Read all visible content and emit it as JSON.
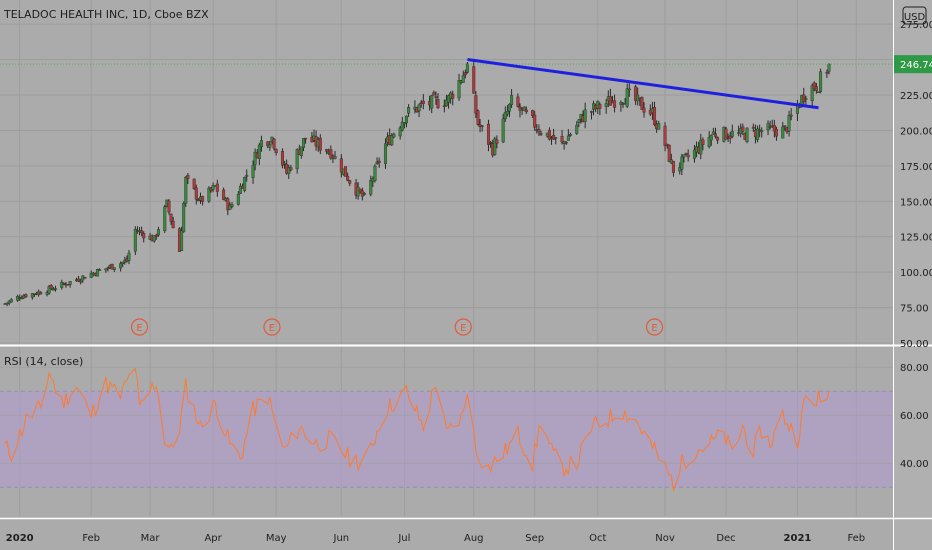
{
  "header": {
    "title": "TELADOC HEALTH INC, 1D, Cboe BZX",
    "currency": "USD"
  },
  "chart_data": [
    {
      "type": "candlestick",
      "symbol": "TELADOC HEALTH INC",
      "interval": "1D",
      "exchange": "Cboe BZX",
      "ylim": [
        50,
        292
      ],
      "y_ticks": [
        "275.00",
        "250.00",
        "225.00",
        "200.00",
        "175.00",
        "150.00",
        "125.00",
        "100.00",
        "75.00",
        "50.00"
      ],
      "last_price_label": "246.74",
      "last_price": 246.74,
      "colors": {
        "up": "#3a8a3e",
        "down": "#b03a3a",
        "trendline": "#1f1fe0",
        "price_line": "#4caf50",
        "price_badge": "#2e9a46"
      },
      "anchors": [
        [
          "2019-12-23",
          77
        ],
        [
          "2019-12-31",
          83
        ],
        [
          "2020-01-10",
          86
        ],
        [
          "2020-01-22",
          92
        ],
        [
          "2020-02-05",
          100
        ],
        [
          "2020-02-20",
          108
        ],
        [
          "2020-02-24",
          130
        ],
        [
          "2020-03-04",
          123
        ],
        [
          "2020-03-10",
          148
        ],
        [
          "2020-03-16",
          115
        ],
        [
          "2020-03-19",
          165
        ],
        [
          "2020-03-26",
          150
        ],
        [
          "2020-04-02",
          160
        ],
        [
          "2020-04-09",
          145
        ],
        [
          "2020-04-20",
          178
        ],
        [
          "2020-04-24",
          192
        ],
        [
          "2020-04-29",
          195
        ],
        [
          "2020-05-06",
          170
        ],
        [
          "2020-05-15",
          195
        ],
        [
          "2020-05-27",
          185
        ],
        [
          "2020-06-08",
          158
        ],
        [
          "2020-06-12",
          152
        ],
        [
          "2020-06-22",
          190
        ],
        [
          "2020-07-02",
          212
        ],
        [
          "2020-07-10",
          218
        ],
        [
          "2020-07-22",
          222
        ],
        [
          "2020-07-31",
          245
        ],
        [
          "2020-08-05",
          205
        ],
        [
          "2020-08-12",
          187
        ],
        [
          "2020-08-21",
          220
        ],
        [
          "2020-08-28",
          210
        ],
        [
          "2020-09-04",
          200
        ],
        [
          "2020-09-14",
          190
        ],
        [
          "2020-09-25",
          212
        ],
        [
          "2020-10-06",
          220
        ],
        [
          "2020-10-15",
          225
        ],
        [
          "2020-10-27",
          212
        ],
        [
          "2020-11-02",
          190
        ],
        [
          "2020-11-06",
          172
        ],
        [
          "2020-11-16",
          185
        ],
        [
          "2020-11-25",
          198
        ],
        [
          "2020-12-08",
          197
        ],
        [
          "2020-12-18",
          200
        ],
        [
          "2020-12-29",
          200
        ],
        [
          "2021-01-08",
          228
        ],
        [
          "2021-01-14",
          233
        ],
        [
          "2021-01-19",
          246.74
        ]
      ],
      "trendline": [
        [
          "2020-07-31",
          250
        ],
        [
          "2021-01-14",
          216
        ]
      ],
      "earnings_markers": {
        "label": "E",
        "dates": [
          "2020-02-26",
          "2020-04-29",
          "2020-07-29",
          "2020-10-28"
        ]
      }
    },
    {
      "type": "line",
      "name": "RSI (14, close)",
      "ylim": [
        18,
        88
      ],
      "y_ticks": [
        "80.00",
        "60.00",
        "40.00"
      ],
      "bands": {
        "upper": 70,
        "lower": 30,
        "fill": "#b19ad2"
      },
      "colors": {
        "line": "#ff7a2e"
      },
      "anchors": [
        [
          "2019-12-23",
          48
        ],
        [
          "2019-12-27",
          44
        ],
        [
          "2020-01-03",
          58
        ],
        [
          "2020-01-10",
          63
        ],
        [
          "2020-01-14",
          78
        ],
        [
          "2020-01-20",
          65
        ],
        [
          "2020-01-27",
          72
        ],
        [
          "2020-02-03",
          60
        ],
        [
          "2020-02-10",
          73
        ],
        [
          "2020-02-17",
          68
        ],
        [
          "2020-02-24",
          81
        ],
        [
          "2020-02-26",
          62
        ],
        [
          "2020-03-02",
          70
        ],
        [
          "2020-03-05",
          74
        ],
        [
          "2020-03-09",
          50
        ],
        [
          "2020-03-12",
          45
        ],
        [
          "2020-03-16",
          55
        ],
        [
          "2020-03-19",
          72
        ],
        [
          "2020-03-26",
          55
        ],
        [
          "2020-04-02",
          65
        ],
        [
          "2020-04-09",
          48
        ],
        [
          "2020-04-14",
          42
        ],
        [
          "2020-04-20",
          62
        ],
        [
          "2020-04-27",
          68
        ],
        [
          "2020-05-01",
          55
        ],
        [
          "2020-05-05",
          45
        ],
        [
          "2020-05-12",
          55
        ],
        [
          "2020-05-20",
          48
        ],
        [
          "2020-05-27",
          50
        ],
        [
          "2020-06-05",
          42
        ],
        [
          "2020-06-12",
          40
        ],
        [
          "2020-06-22",
          62
        ],
        [
          "2020-07-02",
          70
        ],
        [
          "2020-07-10",
          55
        ],
        [
          "2020-07-16",
          74
        ],
        [
          "2020-07-21",
          52
        ],
        [
          "2020-07-29",
          60
        ],
        [
          "2020-07-31",
          72
        ],
        [
          "2020-08-04",
          45
        ],
        [
          "2020-08-10",
          38
        ],
        [
          "2020-08-18",
          45
        ],
        [
          "2020-08-24",
          52
        ],
        [
          "2020-08-31",
          40
        ],
        [
          "2020-09-04",
          58
        ],
        [
          "2020-09-09",
          45
        ],
        [
          "2020-09-14",
          38
        ],
        [
          "2020-09-21",
          40
        ],
        [
          "2020-09-28",
          55
        ],
        [
          "2020-10-05",
          58
        ],
        [
          "2020-10-12",
          62
        ],
        [
          "2020-10-19",
          58
        ],
        [
          "2020-10-26",
          48
        ],
        [
          "2020-11-02",
          38
        ],
        [
          "2020-11-06",
          32
        ],
        [
          "2020-11-10",
          40
        ],
        [
          "2020-11-16",
          45
        ],
        [
          "2020-11-23",
          48
        ],
        [
          "2020-11-30",
          52
        ],
        [
          "2020-12-04",
          44
        ],
        [
          "2020-12-09",
          55
        ],
        [
          "2020-12-14",
          45
        ],
        [
          "2020-12-18",
          54
        ],
        [
          "2020-12-22",
          48
        ],
        [
          "2020-12-28",
          60
        ],
        [
          "2021-01-04",
          50
        ],
        [
          "2021-01-08",
          68
        ],
        [
          "2021-01-11",
          64
        ],
        [
          "2021-01-14",
          68
        ],
        [
          "2021-01-15",
          62
        ],
        [
          "2021-01-19",
          70
        ]
      ]
    }
  ],
  "time_axis": {
    "labels": [
      [
        "2019-12-31",
        "2020"
      ],
      [
        "2020-02-03",
        "Feb"
      ],
      [
        "2020-03-02",
        "Mar"
      ],
      [
        "2020-04-01",
        "Apr"
      ],
      [
        "2020-05-01",
        "May"
      ],
      [
        "2020-06-01",
        "Jun"
      ],
      [
        "2020-07-01",
        "Jul"
      ],
      [
        "2020-08-03",
        "Aug"
      ],
      [
        "2020-09-01",
        "Sep"
      ],
      [
        "2020-10-01",
        "Oct"
      ],
      [
        "2020-11-02",
        "Nov"
      ],
      [
        "2020-12-01",
        "Dec"
      ],
      [
        "2021-01-04",
        "2021"
      ],
      [
        "2021-02-01",
        "Feb"
      ]
    ],
    "bold_labels": [
      "2020",
      "2021"
    ]
  }
}
